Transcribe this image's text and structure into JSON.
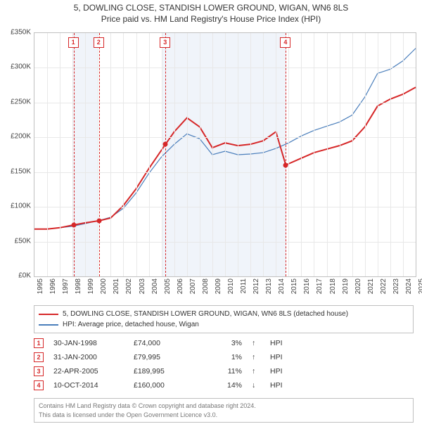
{
  "title": {
    "line1": "5, DOWLING CLOSE, STANDISH LOWER GROUND, WIGAN, WN6 8LS",
    "line2": "Price paid vs. HM Land Registry's House Price Index (HPI)"
  },
  "chart": {
    "type": "line",
    "background_color": "#ffffff",
    "grid_color": "#e8e8e8",
    "border_color": "#c0c0c0",
    "x": {
      "min": 1995,
      "max": 2025,
      "tick_step": 1
    },
    "y": {
      "min": 0,
      "max": 350000,
      "tick_step": 50000,
      "tick_labels": [
        "£0K",
        "£50K",
        "£100K",
        "£150K",
        "£200K",
        "£250K",
        "£300K",
        "£350K"
      ]
    },
    "shaded_bands": [
      {
        "from": 1998.0,
        "to": 2000.0
      },
      {
        "from": 2005.0,
        "to": 2014.8
      }
    ],
    "series": [
      {
        "id": "price_paid",
        "label": "5, DOWLING CLOSE, STANDISH LOWER GROUND, WIGAN, WN6 8LS (detached house)",
        "color": "#d62728",
        "line_width": 2,
        "points": [
          [
            1995,
            68000
          ],
          [
            1996,
            68000
          ],
          [
            1997,
            70000
          ],
          [
            1998.08,
            74000
          ],
          [
            1999,
            77000
          ],
          [
            2000.08,
            79995
          ],
          [
            2001,
            84000
          ],
          [
            2002,
            102000
          ],
          [
            2003,
            126000
          ],
          [
            2004,
            155000
          ],
          [
            2005.31,
            189995
          ],
          [
            2006,
            208000
          ],
          [
            2007,
            228000
          ],
          [
            2008,
            215000
          ],
          [
            2009,
            185000
          ],
          [
            2010,
            192000
          ],
          [
            2011,
            188000
          ],
          [
            2012,
            190000
          ],
          [
            2013,
            195000
          ],
          [
            2014,
            208000
          ],
          [
            2014.78,
            160000
          ],
          [
            2015,
            162000
          ],
          [
            2016,
            170000
          ],
          [
            2017,
            178000
          ],
          [
            2018,
            183000
          ],
          [
            2019,
            188000
          ],
          [
            2020,
            195000
          ],
          [
            2021,
            215000
          ],
          [
            2022,
            245000
          ],
          [
            2023,
            255000
          ],
          [
            2024,
            262000
          ],
          [
            2025,
            272000
          ]
        ]
      },
      {
        "id": "hpi",
        "label": "HPI: Average price, detached house, Wigan",
        "color": "#4a7ebb",
        "line_width": 1.2,
        "points": [
          [
            1995,
            68000
          ],
          [
            1996,
            68000
          ],
          [
            1997,
            70000
          ],
          [
            1998,
            72000
          ],
          [
            1999,
            76000
          ],
          [
            2000,
            80000
          ],
          [
            2001,
            85000
          ],
          [
            2002,
            98000
          ],
          [
            2003,
            120000
          ],
          [
            2004,
            148000
          ],
          [
            2005,
            172000
          ],
          [
            2006,
            190000
          ],
          [
            2007,
            205000
          ],
          [
            2008,
            198000
          ],
          [
            2009,
            175000
          ],
          [
            2010,
            180000
          ],
          [
            2011,
            175000
          ],
          [
            2012,
            176000
          ],
          [
            2013,
            178000
          ],
          [
            2014,
            184000
          ],
          [
            2015,
            192000
          ],
          [
            2016,
            202000
          ],
          [
            2017,
            210000
          ],
          [
            2018,
            216000
          ],
          [
            2019,
            222000
          ],
          [
            2020,
            232000
          ],
          [
            2021,
            258000
          ],
          [
            2022,
            292000
          ],
          [
            2023,
            298000
          ],
          [
            2024,
            310000
          ],
          [
            2025,
            328000
          ]
        ]
      }
    ],
    "markers": [
      {
        "n": "1",
        "x": 1998.08,
        "y": 74000
      },
      {
        "n": "2",
        "x": 2000.08,
        "y": 79995
      },
      {
        "n": "3",
        "x": 2005.31,
        "y": 189995
      },
      {
        "n": "4",
        "x": 2014.78,
        "y": 160000
      }
    ]
  },
  "legend": {
    "items": [
      {
        "color": "#d62728",
        "label": "5, DOWLING CLOSE, STANDISH LOWER GROUND, WIGAN, WN6 8LS (detached house)"
      },
      {
        "color": "#4a7ebb",
        "label": "HPI: Average price, detached house, Wigan"
      }
    ]
  },
  "events": [
    {
      "n": "1",
      "date": "30-JAN-1998",
      "price": "£74,000",
      "pct": "3%",
      "arrow": "↑",
      "label": "HPI"
    },
    {
      "n": "2",
      "date": "31-JAN-2000",
      "price": "£79,995",
      "pct": "1%",
      "arrow": "↑",
      "label": "HPI"
    },
    {
      "n": "3",
      "date": "22-APR-2005",
      "price": "£189,995",
      "pct": "11%",
      "arrow": "↑",
      "label": "HPI"
    },
    {
      "n": "4",
      "date": "10-OCT-2014",
      "price": "£160,000",
      "pct": "14%",
      "arrow": "↓",
      "label": "HPI"
    }
  ],
  "footer": {
    "line1": "Contains HM Land Registry data © Crown copyright and database right 2024.",
    "line2": "This data is licensed under the Open Government Licence v3.0."
  }
}
